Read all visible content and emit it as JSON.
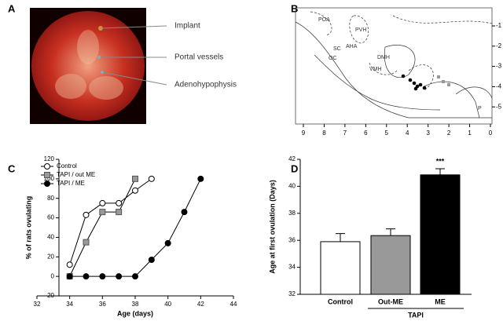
{
  "panels": [
    "A",
    "B",
    "C",
    "D"
  ],
  "photo": {
    "labels": [
      "Implant",
      "Portal vessels",
      "Adenohypophysis"
    ]
  },
  "atlas": {
    "labels": [
      "POA",
      "PVH",
      "SC",
      "AHA",
      "OC",
      "DMH",
      "VMH",
      "P"
    ],
    "xticks": [
      9,
      8,
      7,
      6,
      5,
      4,
      3,
      2,
      1,
      0
    ],
    "yticks": [
      -1,
      -2,
      -3,
      -4,
      -5
    ]
  },
  "chart_data": [
    {
      "type": "line",
      "xlabel": "Age (days)",
      "ylabel": "% of rats ovulating",
      "xlim": [
        32,
        44
      ],
      "xticks": [
        32,
        34,
        36,
        38,
        40,
        42,
        44
      ],
      "ylim": [
        -20,
        120
      ],
      "yticks": [
        -20,
        0,
        20,
        40,
        60,
        80,
        100,
        120
      ],
      "legend": "upper left",
      "series": [
        {
          "name": "Control",
          "color": "#ffffff",
          "marker": "circle",
          "x": [
            34,
            35,
            36,
            37,
            38,
            39
          ],
          "values": [
            12,
            63,
            75,
            75,
            88,
            100
          ]
        },
        {
          "name": "TAPI / out ME",
          "color": "#999999",
          "marker": "square",
          "x": [
            34,
            35,
            36,
            37,
            38
          ],
          "values": [
            0,
            35,
            66,
            66,
            100
          ]
        },
        {
          "name": "TAPI / ME",
          "color": "#000000",
          "marker": "circle",
          "x": [
            34,
            35,
            36,
            37,
            38,
            39,
            40,
            41,
            42
          ],
          "values": [
            0,
            0,
            0,
            0,
            0,
            17,
            34,
            66,
            100
          ]
        }
      ]
    },
    {
      "type": "bar",
      "ylabel": "Age at first ovulation (Days)",
      "categories": [
        "Control",
        "Out-ME",
        "ME"
      ],
      "values": [
        35.9,
        36.35,
        40.85
      ],
      "errors": [
        0.6,
        0.5,
        0.45
      ],
      "colors": [
        "#ffffff",
        "#999999",
        "#000000"
      ],
      "ylim": [
        32,
        42
      ],
      "yticks": [
        32,
        34,
        36,
        38,
        40,
        42
      ],
      "group_label": "TAPI",
      "annotation": "***"
    }
  ]
}
